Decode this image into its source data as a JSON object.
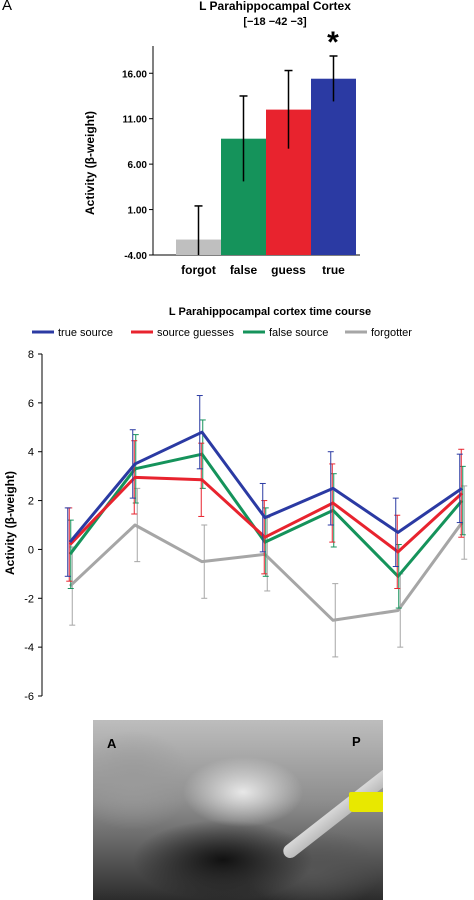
{
  "panel_label": "A",
  "chart_data": [
    {
      "type": "bar",
      "title": "L Parahippocampal Cortex",
      "subtitle": "[−18  −42  −3]",
      "ylabel": "Activity (β-weight)",
      "xlabel": "",
      "ylim": [
        -4,
        19
      ],
      "ytick_labels": [
        "-4.00",
        "1.00",
        "6.00",
        "11.00",
        "16.00"
      ],
      "categories": [
        "forgot",
        "false",
        "guess",
        "true"
      ],
      "values": [
        -2.3,
        8.8,
        12.0,
        15.4
      ],
      "errors": [
        3.7,
        4.7,
        4.3,
        2.5
      ],
      "colors": [
        "#bfbfbf",
        "#15935b",
        "#e8232e",
        "#2b3aa3"
      ],
      "significance_marker": "*",
      "significant_category": "true"
    },
    {
      "type": "line",
      "title": "L Parahippocampal cortex time course",
      "ylabel": "Activity (β-weight)",
      "xlabel": "",
      "ylim": [
        -6,
        8
      ],
      "yticks": [
        -6,
        -4,
        -2,
        0,
        2,
        4,
        6,
        8
      ],
      "x": [
        1,
        2,
        3,
        4,
        5,
        6,
        7
      ],
      "legend_position": "top",
      "series": [
        {
          "name": "true source",
          "color": "#2b3aa3",
          "values": [
            0.3,
            3.5,
            4.8,
            1.3,
            2.5,
            0.7,
            2.5
          ],
          "errors": [
            1.4,
            1.4,
            1.5,
            1.4,
            1.5,
            1.4,
            1.4
          ]
        },
        {
          "name": "source guesses",
          "color": "#e8232e",
          "values": [
            0.2,
            2.95,
            2.85,
            0.5,
            1.9,
            -0.1,
            2.3
          ],
          "errors": [
            1.5,
            1.5,
            1.5,
            1.5,
            1.6,
            1.5,
            1.8
          ]
        },
        {
          "name": "false source",
          "color": "#15935b",
          "values": [
            -0.2,
            3.3,
            3.9,
            0.3,
            1.6,
            -1.1,
            2.0
          ],
          "errors": [
            1.4,
            1.4,
            1.4,
            1.4,
            1.5,
            1.3,
            1.4
          ]
        },
        {
          "name": "forgotter",
          "color": "#a6a6a6",
          "values": [
            -1.5,
            1.0,
            -0.5,
            -0.2,
            -2.9,
            -2.5,
            1.1
          ],
          "errors": [
            1.6,
            1.5,
            1.5,
            1.5,
            1.5,
            1.5,
            1.5
          ]
        }
      ]
    }
  ],
  "brain_image": {
    "label_anterior": "A",
    "label_posterior": "P",
    "activation_color": "#e8e800"
  }
}
